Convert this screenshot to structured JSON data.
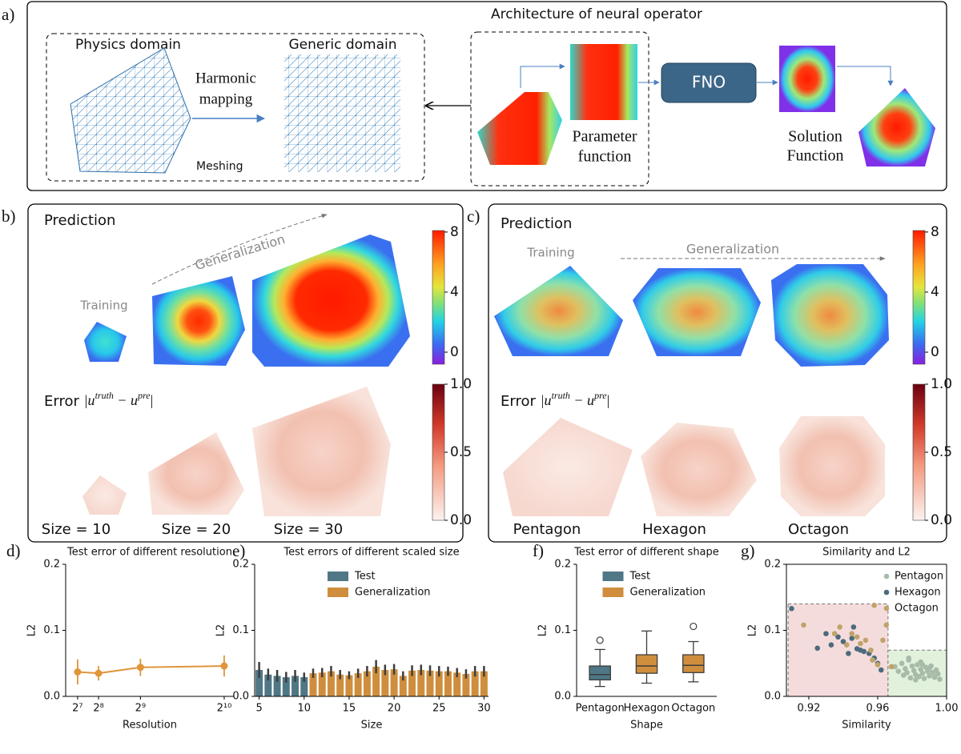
{
  "panels": {
    "a": {
      "label": "a)",
      "title": "Architecture of neural operator",
      "physics": "Physics domain",
      "generic": "Generic domain",
      "harmonic": [
        "Harmonic",
        "mapping"
      ],
      "meshing": "Meshing",
      "fno": "FNO",
      "parameter": [
        "Parameter",
        "function"
      ],
      "solution": [
        "Solution",
        "Function"
      ]
    },
    "b": {
      "label": "b)",
      "prediction": "Prediction",
      "generalization": "Generalization",
      "training": "Training",
      "error": {
        "word": "Error ",
        "u1": "|u",
        "sup1": "truth",
        "mid": " − u",
        "sup2": "pre",
        "end": "|"
      },
      "sizes": [
        "Size = 10",
        "Size = 20",
        "Size = 30"
      ],
      "colorbars": {
        "prediction": {
          "lim": [
            -0.8,
            8.1
          ],
          "ticks": [
            8,
            4,
            0
          ]
        },
        "error": {
          "lim": [
            0,
            1
          ],
          "ticks": [
            {
              "value": 1,
              "label": "1.0"
            },
            0.5,
            {
              "value": 0,
              "label": "0.0"
            }
          ]
        }
      }
    },
    "c": {
      "label": "c)",
      "prediction": "Prediction",
      "generalization": "Generalization",
      "training": "Training",
      "error": {
        "word": "Error ",
        "u1": "|u",
        "sup1": "truth",
        "mid": " − u",
        "sup2": "pre",
        "end": "|"
      },
      "shapes": [
        "Pentagon",
        "Hexagon",
        "Octagon"
      ],
      "colorbars": {
        "prediction": {
          "lim": [
            -0.8,
            8.1
          ],
          "ticks": [
            8,
            4,
            0
          ]
        },
        "error": {
          "lim": [
            0,
            1
          ],
          "ticks": [
            {
              "value": 1,
              "label": "1.0"
            },
            0.5,
            {
              "value": 0,
              "label": "0.0"
            }
          ]
        }
      }
    }
  },
  "chart_data": [
    {
      "type": "line",
      "label": "d)",
      "title": "Test error of different resolution",
      "xlabel": "Resolution",
      "ylabel": "L2",
      "x": [
        128,
        256,
        512,
        1024
      ],
      "xlim": [
        55,
        1083
      ],
      "xticks": [
        {
          "value": 128,
          "label": "2⁷"
        },
        {
          "value": 256,
          "label": "2⁸"
        },
        {
          "value": 512,
          "label": "2⁹"
        },
        {
          "value": 1024,
          "label": "2¹⁰"
        }
      ],
      "ylim": [
        0,
        0.2
      ],
      "yticks": [
        {
          "value": 0,
          "label": "0.0"
        },
        0.1,
        0.2
      ],
      "values": [
        0.037,
        0.035,
        0.044,
        0.046
      ],
      "errors": [
        0.019,
        0.011,
        0.013,
        0.016
      ],
      "color": "#e0953a"
    },
    {
      "type": "bar",
      "label": "e)",
      "title": "Test errors of different scaled size",
      "xlabel": "Size",
      "ylabel": "L2",
      "legend": "upper center",
      "x": [
        5,
        6,
        7,
        8,
        9,
        10,
        11,
        12,
        13,
        14,
        15,
        16,
        17,
        18,
        19,
        20,
        21,
        22,
        23,
        24,
        25,
        26,
        27,
        28,
        29,
        30
      ],
      "xlim": [
        4.5,
        30.5
      ],
      "xticks": [
        5,
        10,
        15,
        20,
        25,
        30
      ],
      "ylim": [
        0,
        0.2
      ],
      "yticks": [
        {
          "value": 0,
          "label": "0.0"
        },
        0.1,
        0.2
      ],
      "series": [
        {
          "name": "Test",
          "color": "#4f7785",
          "values": [
            0.04,
            0.033,
            0.031,
            0.029,
            0.031,
            0.029,
            null,
            null,
            null,
            null,
            null,
            null,
            null,
            null,
            null,
            null,
            null,
            null,
            null,
            null,
            null,
            null,
            null,
            null,
            null,
            null
          ],
          "errors": [
            0.012,
            0.009,
            0.009,
            0.008,
            0.009,
            0.007,
            null,
            null,
            null,
            null,
            null,
            null,
            null,
            null,
            null,
            null,
            null,
            null,
            null,
            null,
            null,
            null,
            null,
            null,
            null,
            null
          ]
        },
        {
          "name": "Generalization",
          "color": "#cf8e3d",
          "values": [
            null,
            null,
            null,
            null,
            null,
            null,
            0.035,
            0.036,
            0.038,
            0.033,
            0.032,
            0.035,
            0.038,
            0.045,
            0.04,
            0.041,
            0.031,
            0.039,
            0.04,
            0.039,
            0.038,
            0.038,
            0.036,
            0.034,
            0.038,
            0.038
          ],
          "errors": [
            null,
            null,
            null,
            null,
            null,
            null,
            0.007,
            0.007,
            0.008,
            0.007,
            0.006,
            0.007,
            0.008,
            0.01,
            0.008,
            0.008,
            0.007,
            0.008,
            0.008,
            0.008,
            0.008,
            0.007,
            0.007,
            0.007,
            0.008,
            0.008
          ]
        }
      ]
    },
    {
      "type": "box",
      "label": "f)",
      "title": "Test error of different shape",
      "xlabel": "Shape",
      "ylabel": "L2",
      "legend": "upper center",
      "categories": [
        "Pentagon",
        "Hexagon",
        "Octagon"
      ],
      "ylim": [
        0,
        0.2
      ],
      "yticks": [
        {
          "value": 0,
          "label": "0.0"
        },
        0.1,
        0.2
      ],
      "series": [
        {
          "name": "Test",
          "color": "#4f7785",
          "boxes": [
            {
              "whislo": 0.015,
              "q1": 0.025,
              "med": 0.033,
              "q3": 0.046,
              "whishi": 0.071,
              "fliers": [
                0.085
              ]
            },
            null,
            null
          ]
        },
        {
          "name": "Generalization",
          "color": "#cf8e3d",
          "boxes": [
            null,
            {
              "whislo": 0.02,
              "q1": 0.035,
              "med": 0.046,
              "q3": 0.063,
              "whishi": 0.099,
              "fliers": []
            },
            {
              "whislo": 0.022,
              "q1": 0.036,
              "med": 0.047,
              "q3": 0.063,
              "whishi": 0.083,
              "fliers": [
                0.106
              ]
            }
          ]
        }
      ]
    },
    {
      "type": "scatter",
      "label": "g)",
      "title": "Similarity and L2",
      "xlabel": "Similarity",
      "ylabel": "L2",
      "legend": "upper right",
      "xlim": [
        0.907,
        1.0
      ],
      "xticks": [
        0.92,
        0.96,
        {
          "value": 1,
          "label": "1.00"
        }
      ],
      "ylim": [
        0,
        0.2
      ],
      "yticks": [
        {
          "value": 0,
          "label": "0.0"
        },
        0.1,
        0.2
      ],
      "regions": [
        {
          "x": [
            0.908,
            0.966
          ],
          "y": [
            0,
            0.14
          ],
          "color": "#f5dcdc"
        },
        {
          "x": [
            0.966,
            1.0
          ],
          "y": [
            0,
            0.07
          ],
          "color": "#e2f1dc"
        }
      ],
      "series": [
        {
          "name": "Pentagon",
          "color": "#a7bba9",
          "x": [
            0.97,
            0.972,
            0.974,
            0.975,
            0.976,
            0.977,
            0.978,
            0.979,
            0.98,
            0.981,
            0.982,
            0.983,
            0.984,
            0.985,
            0.985,
            0.986,
            0.987,
            0.988,
            0.989,
            0.99,
            0.991,
            0.992,
            0.993,
            0.994,
            0.995,
            0.996,
            0.978,
            0.982,
            0.986,
            0.99
          ],
          "y": [
            0.045,
            0.038,
            0.05,
            0.032,
            0.042,
            0.036,
            0.055,
            0.028,
            0.046,
            0.039,
            0.033,
            0.048,
            0.03,
            0.041,
            0.052,
            0.035,
            0.027,
            0.044,
            0.038,
            0.031,
            0.046,
            0.036,
            0.029,
            0.04,
            0.034,
            0.026,
            0.058,
            0.025,
            0.048,
            0.042
          ]
        },
        {
          "name": "Hexagon",
          "color": "#4c6b7d",
          "x": [
            0.91,
            0.925,
            0.93,
            0.933,
            0.94,
            0.943,
            0.946,
            0.948,
            0.95,
            0.952,
            0.955,
            0.958,
            0.96,
            0.962,
            0.945,
            0.937
          ],
          "y": [
            0.133,
            0.073,
            0.095,
            0.078,
            0.083,
            0.065,
            0.105,
            0.072,
            0.07,
            0.068,
            0.065,
            0.058,
            0.05,
            0.04,
            0.088,
            0.09
          ]
        },
        {
          "name": "Octagon",
          "color": "#bfa36a",
          "x": [
            0.917,
            0.935,
            0.938,
            0.942,
            0.945,
            0.95,
            0.953,
            0.956,
            0.958,
            0.96,
            0.963,
            0.965,
            0.957,
            0.948,
            0.968
          ],
          "y": [
            0.108,
            0.095,
            0.105,
            0.078,
            0.095,
            0.08,
            0.085,
            0.07,
            0.138,
            0.048,
            0.085,
            0.108,
            0.055,
            0.09,
            0.045
          ]
        }
      ]
    }
  ]
}
